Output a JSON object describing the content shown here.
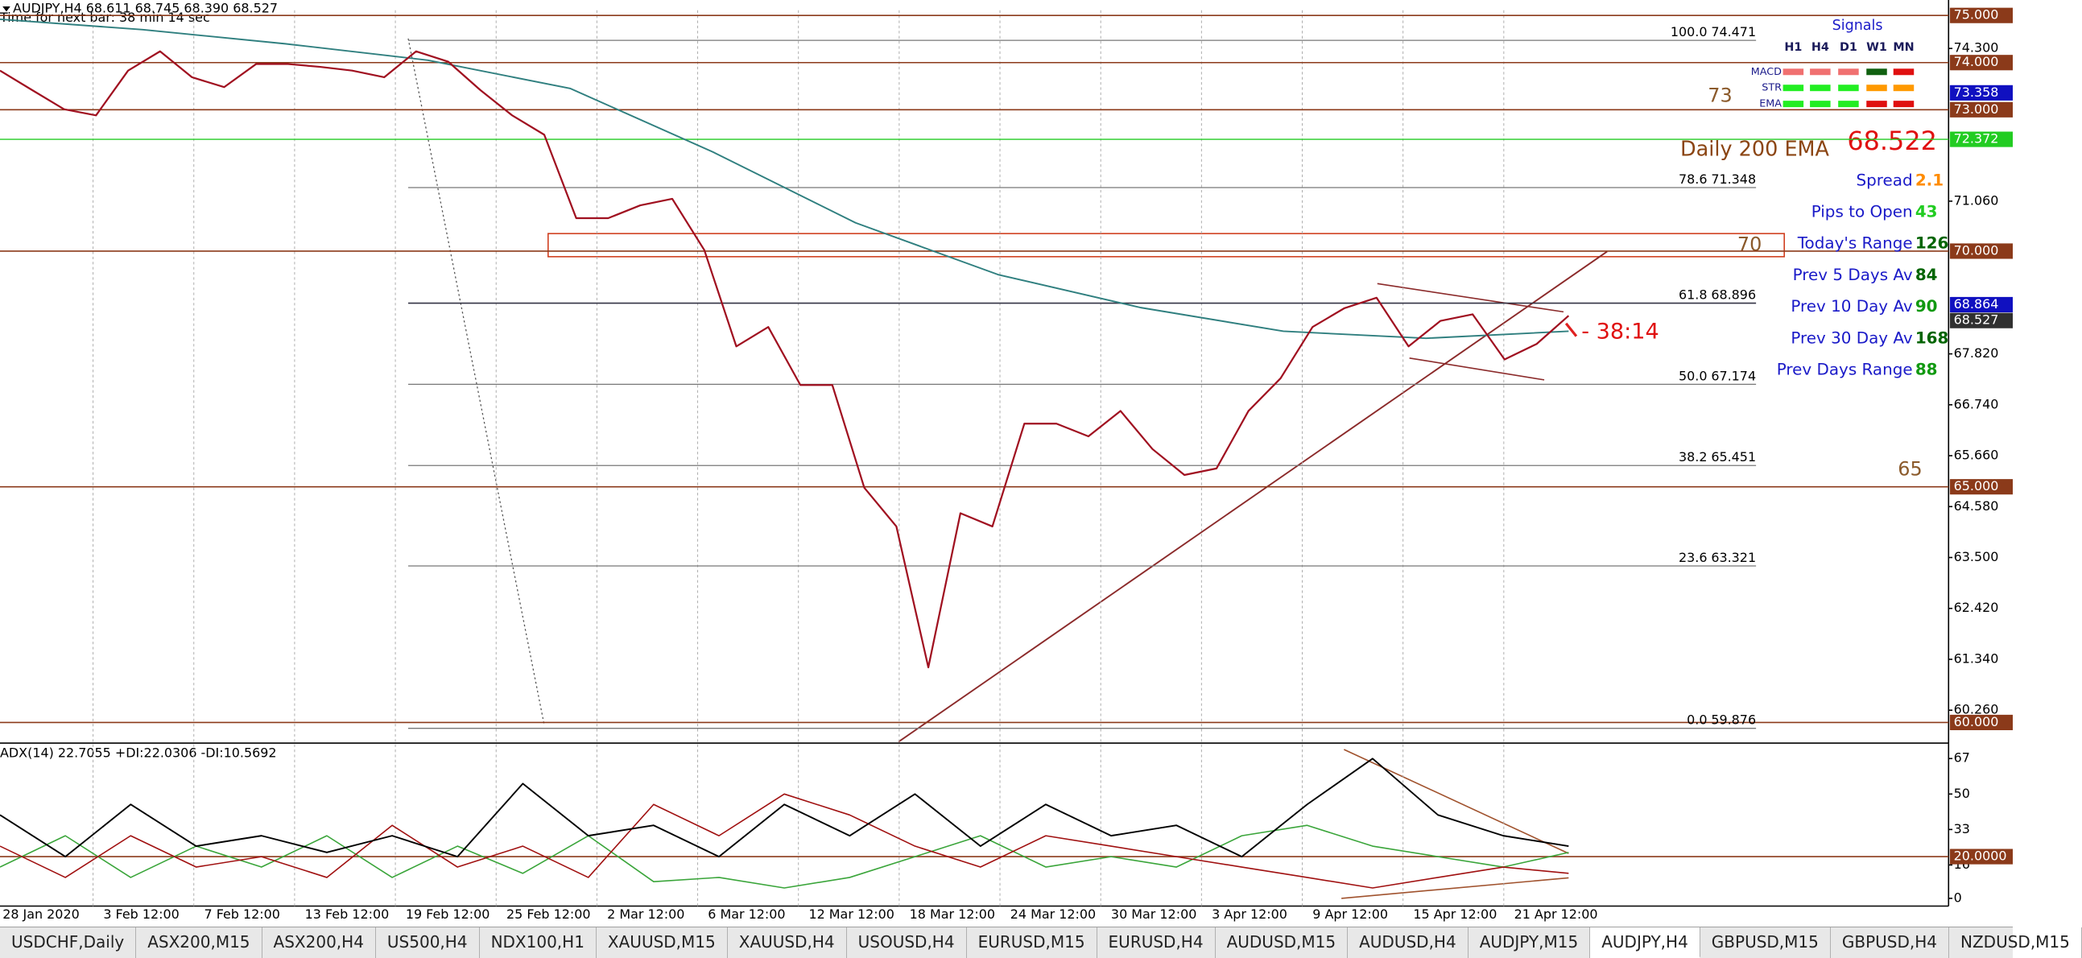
{
  "chart_data": {
    "type": "line",
    "title": "AUDJPY,H4  68.611 68.745 68.390 68.527",
    "subtitle": "Time for next bar: 38 min 14 sec",
    "categories": [
      "28 Jan 2020",
      "3 Feb 12:00",
      "7 Feb 12:00",
      "13 Feb 12:00",
      "19 Feb 12:00",
      "25 Feb 12:00",
      "2 Mar 12:00",
      "6 Mar 12:00",
      "12 Mar 12:00",
      "18 Mar 12:00",
      "24 Mar 12:00",
      "30 Mar 12:00",
      "3 Apr 12:00",
      "9 Apr 12:00",
      "15 Apr 12:00",
      "21 Apr 12:00"
    ],
    "price": {
      "color": "#a01020",
      "values": [
        73.83,
        73.42,
        73.01,
        72.88,
        73.83,
        74.24,
        73.69,
        73.48,
        73.97,
        73.97,
        73.91,
        73.83,
        73.69,
        74.24,
        74.02,
        73.42,
        72.88,
        72.47,
        70.7,
        70.7,
        70.97,
        71.11,
        70.02,
        67.98,
        68.39,
        67.16,
        67.16,
        64.98,
        64.16,
        61.17,
        64.44,
        64.16,
        66.34,
        66.34,
        66.07,
        66.61,
        65.8,
        65.25,
        65.39,
        66.61,
        67.3,
        68.39,
        68.79,
        69.01,
        67.98,
        68.52,
        68.66,
        67.7,
        68.03,
        68.63
      ]
    },
    "ema200": {
      "color": "#2f7f7f",
      "values": [
        74.92,
        74.7,
        74.4,
        74.05,
        73.45,
        72.1,
        70.6,
        69.5,
        68.8,
        68.3,
        68.15,
        68.3
      ]
    },
    "ylim": [
      59.59,
      75.11
    ],
    "yticks": [
      {
        "value": 74.3,
        "label": "74.300"
      },
      {
        "value": 71.06,
        "label": "71.060"
      },
      {
        "value": 67.82,
        "label": "67.820"
      },
      {
        "value": 66.74,
        "label": "66.740"
      },
      {
        "value": 65.66,
        "label": "65.660"
      },
      {
        "value": 64.58,
        "label": "64.580"
      },
      {
        "value": 63.5,
        "label": "63.500"
      },
      {
        "value": 62.42,
        "label": "62.420"
      },
      {
        "value": 61.34,
        "label": "61.340"
      },
      {
        "value": 60.26,
        "label": "60.260"
      }
    ],
    "levels": [
      {
        "value": 75,
        "label": "75.000"
      },
      {
        "value": 74,
        "label": "74.000"
      },
      {
        "value": 73,
        "label": "73.000"
      },
      {
        "value": 70,
        "label": "70.000"
      },
      {
        "value": 65,
        "label": "65.000"
      },
      {
        "value": 60,
        "label": "60.000"
      }
    ],
    "level_color": "#8b3a1a",
    "markers": [
      {
        "value": 73.358,
        "label": "73.358",
        "color": "#1010c0"
      },
      {
        "value": 72.372,
        "label": "72.372",
        "color": "#22cc22"
      },
      {
        "value": 68.864,
        "label": "68.864",
        "color": "#1010c0"
      },
      {
        "value": 68.527,
        "label": "68.527",
        "color": "#303030"
      }
    ],
    "fibonacci": [
      {
        "ratio": "100.0",
        "price": 74.471
      },
      {
        "ratio": "78.6",
        "price": 71.348
      },
      {
        "ratio": "61.8",
        "price": 68.896
      },
      {
        "ratio": "50.0",
        "price": 67.174
      },
      {
        "ratio": "38.2",
        "price": 65.451
      },
      {
        "ratio": "23.6",
        "price": 63.321
      },
      {
        "ratio": "0.0",
        "price": 59.876
      }
    ],
    "annotations": {
      "level_73": "73",
      "daily_ema": "Daily 200 EMA",
      "ema_value": 68.522,
      "level_70": "70",
      "level_65": "65",
      "countdown": "- 38:14"
    },
    "indicator": {
      "title": "ADX(14) 22.7055 +DI:22.0306 -DI:10.5692",
      "ylim": [
        -3.7,
        73.8
      ],
      "yticks": [
        0,
        16,
        33,
        50,
        67
      ],
      "level": {
        "value": 20,
        "label": "20.0000"
      },
      "adx": {
        "color": "#000000",
        "values": [
          40,
          20,
          45,
          25,
          30,
          22,
          30,
          20,
          55,
          30,
          35,
          20,
          45,
          30,
          50,
          25,
          45,
          30,
          35,
          20,
          45,
          67,
          40,
          30,
          25
        ]
      },
      "minus_di": {
        "color": "#a01010",
        "values": [
          25,
          10,
          30,
          15,
          20,
          10,
          35,
          15,
          25,
          10,
          45,
          30,
          50,
          40,
          25,
          15,
          30,
          25,
          20,
          15,
          10,
          5,
          10,
          15,
          12
        ]
      },
      "plus_di": {
        "color": "#3aa53a",
        "values": [
          15,
          30,
          10,
          25,
          15,
          30,
          10,
          25,
          12,
          30,
          8,
          10,
          5,
          10,
          20,
          30,
          15,
          20,
          15,
          30,
          35,
          25,
          20,
          15,
          22
        ]
      }
    },
    "signals": {
      "title": "Signals",
      "columns": [
        "H1",
        "H4",
        "D1",
        "W1",
        "MN"
      ],
      "rows": [
        {
          "label": "MACD",
          "colors": [
            "#f07070",
            "#f07070",
            "#f07070",
            "#106010",
            "#e01010"
          ]
        },
        {
          "label": "STR",
          "colors": [
            "#22ee22",
            "#22ee22",
            "#22ee22",
            "#ff9900",
            "#ff9900"
          ]
        },
        {
          "label": "EMA",
          "colors": [
            "#22ee22",
            "#22ee22",
            "#22ee22",
            "#e01010",
            "#e01010"
          ]
        }
      ]
    },
    "stats": [
      {
        "label": "Spread",
        "value": 2.1,
        "color": "#ff8c00"
      },
      {
        "label": "Pips to Open",
        "value": 43,
        "color": "#22cc22"
      },
      {
        "label": "Today's Range",
        "value": 126,
        "color": "#006400"
      },
      {
        "label": "Prev 5 Days Av",
        "value": 84,
        "color": "#006400"
      },
      {
        "label": "Prev 10 Day Av",
        "value": 90,
        "color": "#119911"
      },
      {
        "label": "Prev 30 Day Av",
        "value": 168,
        "color": "#006400"
      },
      {
        "label": "Prev Days Range",
        "value": 88,
        "color": "#119911"
      }
    ],
    "tabs": {
      "items": [
        "USDCHF,Daily",
        "ASX200,M15",
        "ASX200,H4",
        "US500,H4",
        "NDX100,H1",
        "XAUUSD,M15",
        "XAUUSD,H4",
        "USOUSD,H4",
        "EURUSD,M15",
        "EURUSD,H4",
        "AUDUSD,M15",
        "AUDUSD,H4",
        "AUDJPY,M15",
        "AUDJPY,H4",
        "GBPUSD,M15",
        "GBPUSD,H4",
        "NZDUSD,M15"
      ],
      "active": 13
    }
  }
}
